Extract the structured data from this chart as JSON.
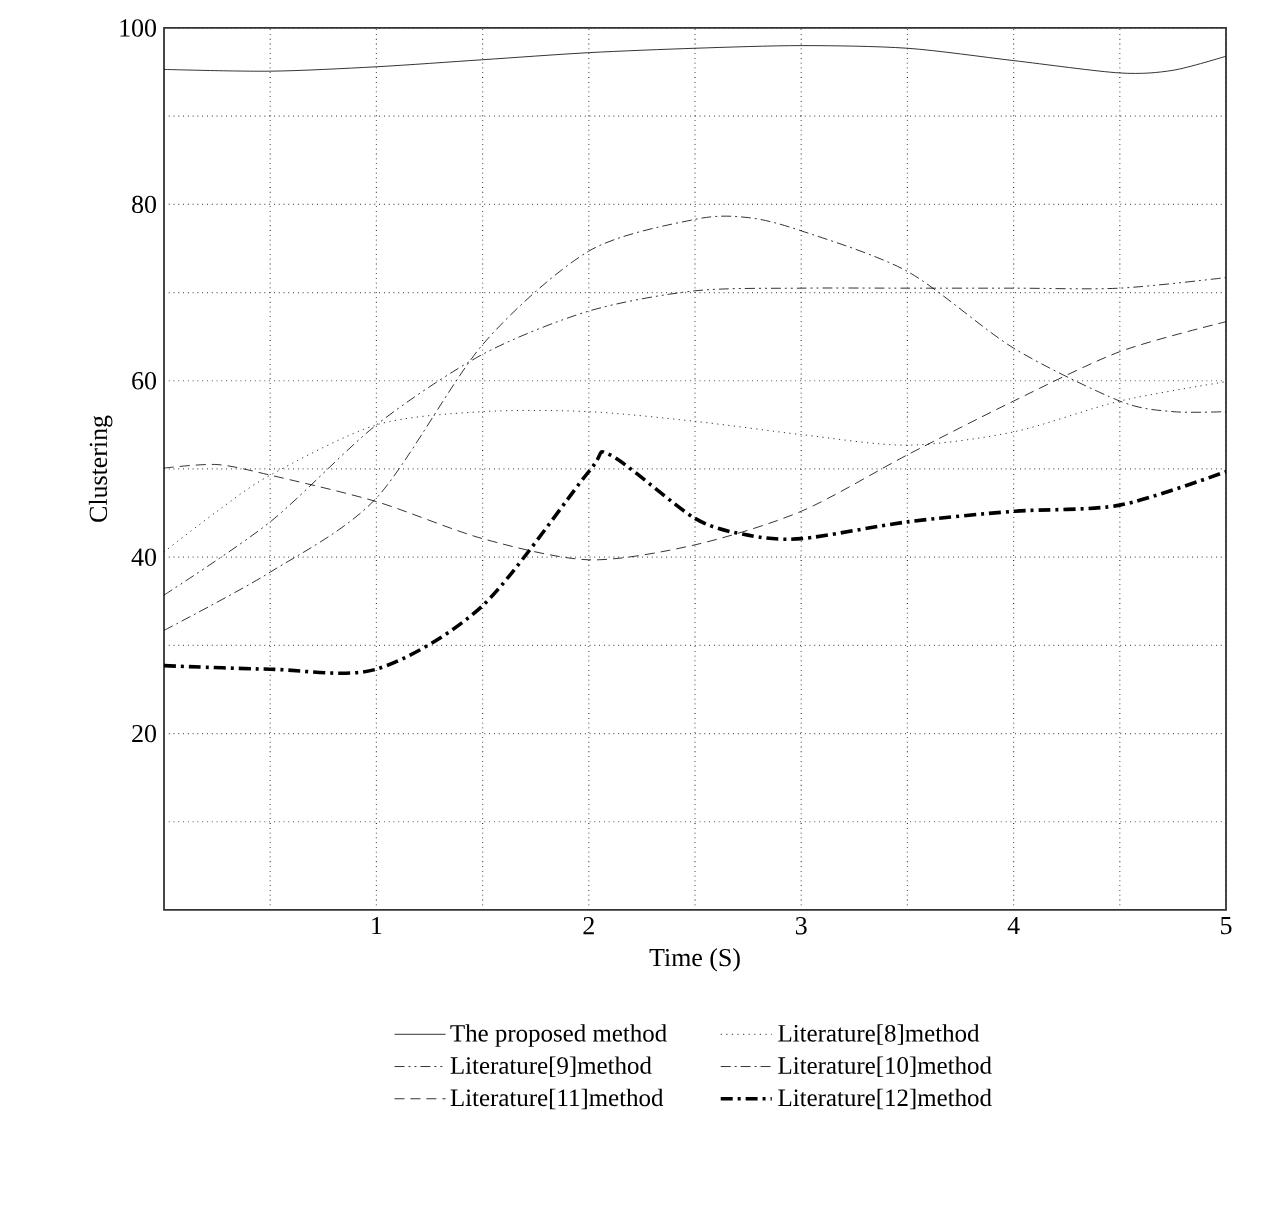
{
  "chart_data": {
    "type": "line",
    "xlabel": "Time (S)",
    "ylabel": "Clustering",
    "xlim": [
      0,
      5
    ],
    "ylim": [
      0,
      100
    ],
    "xticks": [
      {
        "value": 0.5,
        "label": null
      },
      1,
      {
        "value": 1.5,
        "label": null
      },
      2,
      {
        "value": 2.5,
        "label": null
      },
      3,
      {
        "value": 3.5,
        "label": null
      },
      4,
      {
        "value": 4.5,
        "label": null
      },
      5
    ],
    "yticks": [
      {
        "value": 10,
        "label": null
      },
      20,
      {
        "value": 30,
        "label": null
      },
      40,
      {
        "value": 50,
        "label": null
      },
      60,
      {
        "value": 70,
        "label": null
      },
      80,
      {
        "value": 90,
        "label": null
      },
      100
    ],
    "grid": true,
    "legend": "bottom",
    "marker": "none",
    "series": [
      {
        "name": "The proposed method",
        "color": "#000000",
        "line_style": "solid",
        "x": [
          0,
          0.5,
          1,
          1.5,
          2,
          2.5,
          3,
          3.5,
          4,
          4.5,
          4.75,
          5
        ],
        "values": [
          95.3,
          95.1,
          95.6,
          96.4,
          97.2,
          97.7,
          98.0,
          97.7,
          96.3,
          94.9,
          95.2,
          96.8
        ]
      },
      {
        "name": "Literature[8]method",
        "color": "#000000",
        "line_style": "dotted",
        "x": [
          0,
          0.25,
          0.5,
          1,
          1.5,
          2,
          2.5,
          3,
          3.5,
          4,
          4.5,
          5
        ],
        "values": [
          40.6,
          45.2,
          49.3,
          55.0,
          56.5,
          56.5,
          55.4,
          53.9,
          52.7,
          54.2,
          57.7,
          59.9
        ]
      },
      {
        "name": "Literature[9]method",
        "color": "#000000",
        "line_style": "dashdotdot",
        "x": [
          0,
          0.5,
          1,
          1.5,
          2,
          2.5,
          3,
          3.5,
          4,
          4.5,
          5
        ],
        "values": [
          35.7,
          44.0,
          55.0,
          63.0,
          67.9,
          70.2,
          70.5,
          70.5,
          70.5,
          70.5,
          71.7
        ]
      },
      {
        "name": "Literature[10]method",
        "color": "#000000",
        "line_style": "dashdot",
        "x": [
          0,
          0.5,
          1,
          1.5,
          2,
          2.5,
          2.75,
          3,
          3.5,
          4,
          4.5,
          4.75,
          5
        ],
        "values": [
          31.7,
          38.3,
          46.7,
          64.1,
          74.7,
          78.3,
          78.5,
          77.0,
          72.4,
          63.7,
          57.7,
          56.5,
          56.5
        ]
      },
      {
        "name": "Literature[11]method",
        "color": "#000000",
        "line_style": "dashed",
        "x": [
          0,
          0.25,
          0.5,
          1,
          1.5,
          2,
          2.5,
          3,
          3.5,
          4,
          4.5,
          5
        ],
        "values": [
          50.1,
          50.5,
          49.3,
          46.3,
          42.1,
          39.7,
          41.4,
          45.2,
          51.6,
          57.7,
          63.3,
          66.7
        ]
      },
      {
        "name": "Literature[12]method",
        "color": "#000000",
        "line_style": "thick dashdot",
        "x": [
          0,
          0.5,
          1,
          1.5,
          2,
          2.1,
          2.5,
          2.75,
          3,
          3.5,
          4,
          4.5,
          5
        ],
        "values": [
          27.7,
          27.3,
          27.3,
          34.5,
          49.7,
          51.6,
          44.4,
          42.5,
          42.1,
          44.0,
          45.2,
          45.9,
          49.7
        ]
      }
    ]
  }
}
